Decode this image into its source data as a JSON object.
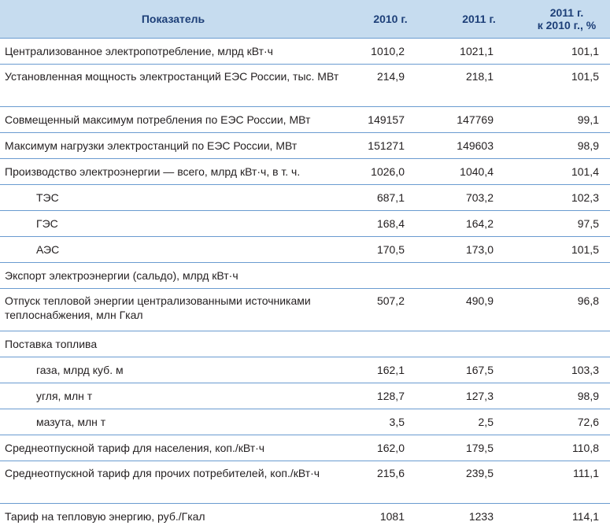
{
  "table": {
    "header": [
      "Показатель",
      "2010 г.",
      "2011 г.",
      [
        "2011 г.",
        "к 2010 г., %"
      ]
    ],
    "rows": [
      [
        "Централизованное электропотребление, млрд кВт·ч",
        "1010,2",
        "1021,1",
        "101,1"
      ],
      [
        "Установленная мощность электростанций ЕЭС России, тыс. МВт",
        "214,9",
        "218,1",
        "101,5"
      ],
      [
        "Совмещенный максимум потребления по ЕЭС России, МВт",
        "149157",
        "147769",
        "99,1"
      ],
      [
        "Максимум нагрузки электростанций по ЕЭС России, МВт",
        "151271",
        "149603",
        "98,9"
      ],
      [
        "Производство электроэнергии — всего, млрд кВт·ч, в т. ч.",
        "1026,0",
        "1040,4",
        "101,4"
      ],
      [
        "ТЭС",
        "687,1",
        "703,2",
        "102,3"
      ],
      [
        "ГЭС",
        "168,4",
        "164,2",
        "97,5"
      ],
      [
        "АЭС",
        "170,5",
        "173,0",
        "101,5"
      ],
      [
        "Экспорт электроэнергии (сальдо), млрд кВт·ч"
      ],
      [
        "Отпуск тепловой энергии централизованными источниками теплоснабжения, млн Гкал",
        "507,2",
        "490,9",
        "96,8"
      ],
      [
        "Поставка топлива"
      ],
      [
        "газа, млрд куб. м",
        "162,1",
        "167,5",
        "103,3"
      ],
      [
        "угля, млн т",
        "128,7",
        "127,3",
        "98,9"
      ],
      [
        "мазута, млн т",
        "3,5",
        "2,5",
        "72,6"
      ],
      [
        "Среднеотпускной тариф для населения, коп./кВт·ч",
        "162,0",
        "179,5",
        "110,8"
      ],
      [
        "Среднеотпускной тариф для прочих потребителей, коп./кВт·ч",
        "215,6",
        "239,5",
        "111,1"
      ],
      [
        "Тариф на тепловую энергию, руб./Гкал",
        "1081",
        "1233",
        "114,1"
      ]
    ]
  }
}
